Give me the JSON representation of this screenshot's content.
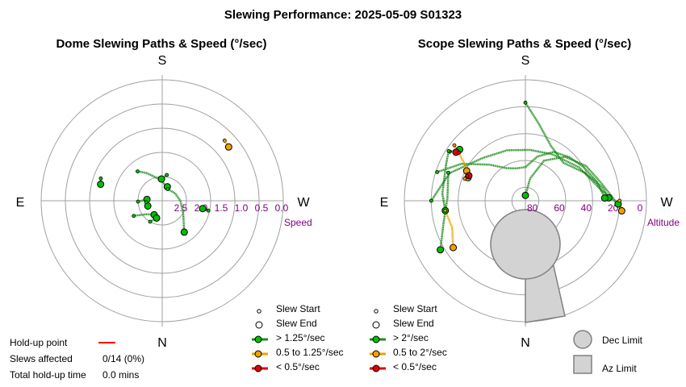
{
  "title": "Slewing Performance: 2025-05-09 S01323",
  "colors": {
    "fast": "#00c000",
    "fast_line": "#1e8c1e",
    "medium": "#f0a000",
    "slow": "#e00000",
    "limit_fill": "#d3d3d3",
    "limit_stroke": "#808080",
    "scale": "#800080",
    "holdup": "#ff0000"
  },
  "chart_data": [
    {
      "type": "polar-scatter",
      "title": "Dome Slewing Paths & Speed (°/sec)",
      "cardinals": {
        "top": "S",
        "bottom": "N",
        "left": "E",
        "right": "W"
      },
      "radial_label": "Speed",
      "radial_ticks": [
        "2.5",
        "2.0",
        "1.5",
        "1.0",
        "0.5",
        "0.0"
      ],
      "radial_tick_values": [
        2.5,
        2.0,
        1.5,
        1.0,
        0.5,
        0.0
      ],
      "radial_max": 3.0,
      "legend": [
        {
          "name": "Slew Start",
          "kind": "start"
        },
        {
          "name": "Slew End",
          "kind": "end"
        },
        {
          "name": "> 1.25°/sec",
          "kind": "fast"
        },
        {
          "name": "0.5 to 1.25°/sec",
          "kind": "medium"
        },
        {
          "name": "< 0.5°/sec",
          "kind": "slow"
        }
      ],
      "slews": [
        {
          "speed": "fast",
          "points": [
            [
              200,
              2.63
            ],
            [
              190,
              2.6
            ],
            [
              180,
              2.52
            ],
            [
              170,
              2.45
            ],
            [
              160,
              2.35
            ],
            [
              150,
              2.2
            ],
            [
              140,
              2.05
            ]
          ],
          "start": [
            140,
            2.05
          ],
          "end": [
            200,
            2.63
          ]
        },
        {
          "speed": "fast",
          "points": [
            [
              205,
              2.68
            ],
            [
              240,
              2.63
            ],
            [
              270,
              2.55
            ],
            [
              300,
              2.4
            ],
            [
              325,
              2.05
            ]
          ],
          "start": [
            205,
            2.68
          ],
          "end": [
            325,
            2.05
          ]
        },
        {
          "speed": "fast",
          "points": [
            [
              95,
              2.62
            ],
            [
              88,
              2.4
            ]
          ],
          "start": [
            88,
            2.4
          ],
          "end": [
            95,
            2.62
          ]
        },
        {
          "speed": "fast",
          "points": [
            [
              30,
              2.6
            ],
            [
              50,
              2.48
            ],
            [
              62,
              2.2
            ]
          ],
          "start": [
            62,
            2.2
          ],
          "end": [
            30,
            2.6
          ]
        },
        {
          "speed": "fast",
          "points": [
            [
              18,
              2.55
            ],
            [
              30,
              2.4
            ]
          ],
          "start": [
            30,
            2.4
          ],
          "end": [
            18,
            2.55
          ]
        },
        {
          "speed": "fast",
          "points": [
            [
              178,
              2.46
            ],
            [
              190,
              2.35
            ]
          ],
          "start": [
            190,
            2.35
          ],
          "end": [
            178,
            2.46
          ]
        },
        {
          "speed": "fast",
          "points": [
            [
              105,
              1.42
            ],
            [
              110,
              1.38
            ]
          ],
          "start": [
            110,
            1.38
          ],
          "end": [
            105,
            1.42
          ]
        },
        {
          "speed": "fast",
          "points": [
            [
              281,
              1.98
            ],
            [
              282,
              1.83
            ]
          ],
          "start": [
            282,
            1.83
          ],
          "end": [
            281,
            1.98
          ]
        },
        {
          "speed": "fast",
          "points": [
            [
              70,
              2.62
            ],
            [
              85,
              2.6
            ]
          ],
          "start": [
            85,
            2.6
          ],
          "end": [
            70,
            2.62
          ]
        },
        {
          "speed": "medium",
          "points": [
            [
              231,
              0.88
            ],
            [
              226,
              0.85
            ]
          ],
          "start": [
            226,
            0.85
          ],
          "end": [
            231,
            0.88
          ]
        }
      ]
    },
    {
      "type": "polar-scatter",
      "title": "Scope Slewing Paths & Speed (°/sec)",
      "cardinals": {
        "top": "S",
        "bottom": "N",
        "left": "E",
        "right": "W"
      },
      "radial_label": "Altitude",
      "radial_ticks": [
        "80",
        "60",
        "40",
        "20",
        "0"
      ],
      "radial_tick_values": [
        80,
        60,
        40,
        20,
        0
      ],
      "legend": [
        {
          "name": "Slew Start",
          "kind": "start"
        },
        {
          "name": "Slew End",
          "kind": "end"
        },
        {
          "name": "> 2°/sec",
          "kind": "fast"
        },
        {
          "name": "0.5 to 2°/sec",
          "kind": "medium"
        },
        {
          "name": "< 0.5°/sec",
          "kind": "slow"
        },
        {
          "name": "Dec Limit",
          "kind": "dec-limit"
        },
        {
          "name": "Az Limit",
          "kind": "az-limit"
        }
      ],
      "slews": [
        {
          "speed": "fast",
          "points": [
            [
              180,
              17
            ],
            [
              190,
              32
            ],
            [
              205,
              45
            ],
            [
              225,
              50
            ],
            [
              245,
              41
            ],
            [
              260,
              32
            ],
            [
              268,
              28
            ]
          ],
          "start": [
            180,
            17
          ],
          "end": [
            268,
            28
          ]
        },
        {
          "speed": "fast",
          "points": [
            [
              268,
              31
            ],
            [
              255,
              35
            ],
            [
              240,
              40
            ],
            [
              225,
              44
            ],
            [
              210,
              48
            ],
            [
              195,
              56
            ],
            [
              180,
              65
            ],
            [
              165,
              65
            ],
            [
              150,
              62
            ],
            [
              135,
              52
            ],
            [
              120,
              35
            ],
            [
              108,
              21
            ]
          ],
          "start": [
            108,
            21
          ],
          "end": [
            268,
            31
          ]
        },
        {
          "speed": "fast",
          "points": [
            [
              90,
              20
            ],
            [
              110,
              30
            ],
            [
              135,
              45
            ],
            [
              160,
              50
            ],
            [
              185,
              52
            ],
            [
              210,
              50
            ],
            [
              238,
              43
            ],
            [
              262,
              33
            ],
            [
              272,
              21
            ]
          ],
          "start": [
            90,
            20
          ],
          "end": [
            272,
            21
          ]
        },
        {
          "speed": "fast",
          "points": [
            [
              275,
              18
            ],
            [
              268,
              25
            ],
            [
              255,
              33
            ],
            [
              240,
              38
            ],
            [
              222,
              46
            ],
            [
              205,
              57
            ],
            [
              192,
              73
            ],
            [
              180,
              86
            ]
          ],
          "start": [
            275,
            18
          ],
          "end": [
            180,
            86
          ]
        },
        {
          "speed": "fast",
          "points": [
            [
              110,
              29
            ],
            [
              92,
              32
            ],
            [
              75,
              27
            ],
            [
              60,
              17
            ]
          ],
          "start": [
            110,
            29
          ],
          "end": [
            60,
            17
          ]
        },
        {
          "speed": "fast",
          "points": [
            [
              123,
              23
            ],
            [
              128,
              28
            ]
          ],
          "start": [
            123,
            23
          ],
          "end": [
            128,
            28
          ]
        },
        {
          "speed": "fast",
          "points": [
            [
              123,
              22
            ],
            [
              115,
              25
            ],
            [
              95,
              28
            ],
            [
              83,
              30
            ]
          ],
          "start": [
            123,
            22
          ],
          "end": [
            83,
            30
          ]
        },
        {
          "speed": "medium",
          "points": [
            [
              128,
              23
            ],
            [
              122,
              36
            ],
            [
              117,
              41
            ]
          ],
          "start": [
            128,
            23
          ],
          "end": [
            117,
            41
          ]
        },
        {
          "speed": "medium",
          "points": [
            [
              83,
              30
            ],
            [
              70,
              32
            ],
            [
              57,
              26
            ]
          ],
          "start": [
            83,
            30
          ],
          "end": [
            57,
            26
          ]
        },
        {
          "speed": "medium",
          "points": [
            [
              112,
              44
            ],
            [
              110,
              42
            ]
          ],
          "start": [
            110,
            42
          ],
          "end": [
            112,
            44
          ]
        },
        {
          "speed": "medium",
          "points": [
            [
              270,
              20
            ],
            [
              276,
              18
            ]
          ],
          "start": [
            270,
            20
          ],
          "end": [
            276,
            18
          ]
        },
        {
          "speed": "slow",
          "points": [
            [
              125,
              27
            ],
            [
              126,
              29
            ]
          ],
          "start": [
            126,
            29
          ],
          "end": [
            125,
            27
          ]
        },
        {
          "speed": "slow",
          "points": [
            [
              113,
              43
            ],
            [
              114,
              44
            ]
          ],
          "start": [
            113,
            43
          ],
          "end": [
            114,
            44
          ]
        }
      ]
    }
  ],
  "holdup": {
    "point_label": "Hold-up point",
    "slews_label": "Slews affected",
    "slews_value": "0/14 (0%)",
    "time_label": "Total hold-up time",
    "time_value": "0.0 mins"
  }
}
